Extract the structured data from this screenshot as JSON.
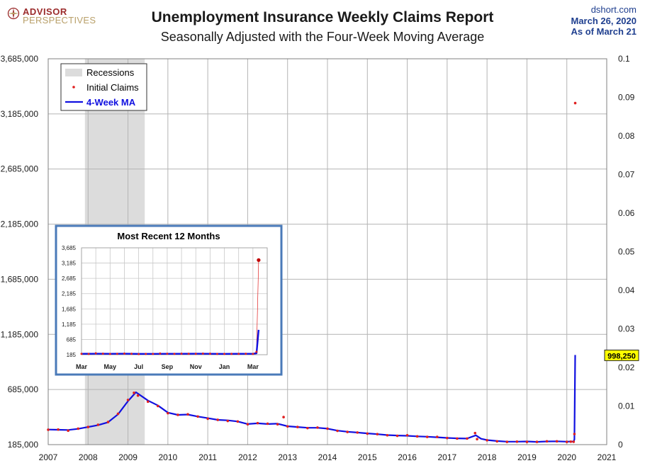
{
  "header": {
    "logo_top": "ADVISOR",
    "logo_bottom": "PERSPECTIVES",
    "title": "Unemployment Insurance Weekly Claims Report",
    "subtitle": "Seasonally Adjusted with the Four-Week Moving Average",
    "source": "dshort.com",
    "date": "March 26, 2020",
    "as_of": "As of March 21"
  },
  "chart_data": [
    {
      "type": "line",
      "title": "Unemployment Insurance Weekly Claims Report",
      "legend": {
        "placement": "top-left",
        "items": [
          "Recessions",
          "Initial Claims",
          "4-Week MA"
        ]
      },
      "y_ticks": [
        "185,000",
        "685,000",
        "1,185,000",
        "1,685,000",
        "2,185,000",
        "2,685,000",
        "3,185,000",
        "3,685,000"
      ],
      "ylim": [
        185000,
        3685000
      ],
      "y2_ticks": [
        "0",
        "0.01",
        "0.02",
        "0.03",
        "0.04",
        "0.05",
        "0.06",
        "0.07",
        "0.08",
        "0.09",
        "0.1"
      ],
      "y2lim": [
        0,
        0.1
      ],
      "x_ticks": [
        "2007",
        "2008",
        "2009",
        "2010",
        "2011",
        "2012",
        "2013",
        "2014",
        "2015",
        "2016",
        "2017",
        "2018",
        "2019",
        "2020",
        "2021"
      ],
      "xlim": [
        2007,
        2021
      ],
      "grid": true,
      "recession": [
        2007.92,
        2009.42
      ],
      "last_ma_label": "998,250",
      "series": [
        {
          "name": "Initial Claims",
          "color": "#e02020",
          "x": [
            2007.0,
            2007.25,
            2007.5,
            2007.75,
            2008.0,
            2008.25,
            2008.5,
            2008.75,
            2009.0,
            2009.15,
            2009.25,
            2009.5,
            2009.75,
            2010.0,
            2010.25,
            2010.5,
            2010.75,
            2011.0,
            2011.25,
            2011.5,
            2011.75,
            2012.0,
            2012.25,
            2012.5,
            2012.75,
            2012.9,
            2013.0,
            2013.25,
            2013.5,
            2013.75,
            2014.0,
            2014.25,
            2014.5,
            2014.75,
            2015.0,
            2015.25,
            2015.5,
            2015.75,
            2016.0,
            2016.25,
            2016.5,
            2016.75,
            2017.0,
            2017.25,
            2017.5,
            2017.7,
            2017.75,
            2018.0,
            2018.25,
            2018.5,
            2018.75,
            2019.0,
            2019.25,
            2019.5,
            2019.75,
            2020.0,
            2020.1,
            2020.17,
            2020.19,
            2020.21
          ],
          "values": [
            320000,
            322000,
            312000,
            330000,
            345000,
            365000,
            390000,
            465000,
            590000,
            655000,
            630000,
            575000,
            535000,
            470000,
            455000,
            460000,
            440000,
            420000,
            410000,
            400000,
            395000,
            370000,
            380000,
            375000,
            370000,
            435000,
            350000,
            345000,
            335000,
            340000,
            330000,
            310000,
            300000,
            295000,
            285000,
            280000,
            270000,
            265000,
            270000,
            260000,
            255000,
            255000,
            245000,
            240000,
            240000,
            290000,
            235000,
            225000,
            215000,
            210000,
            212000,
            210000,
            210000,
            215000,
            215000,
            210000,
            212000,
            211000,
            281000,
            3283000
          ]
        },
        {
          "name": "4-Week MA",
          "color": "#1010e0",
          "x": [
            2007.0,
            2007.25,
            2007.5,
            2007.75,
            2008.0,
            2008.25,
            2008.5,
            2008.75,
            2009.0,
            2009.2,
            2009.5,
            2009.75,
            2010.0,
            2010.25,
            2010.5,
            2010.75,
            2011.0,
            2011.25,
            2011.5,
            2011.75,
            2012.0,
            2012.25,
            2012.5,
            2012.75,
            2013.0,
            2013.25,
            2013.5,
            2013.75,
            2014.0,
            2014.25,
            2014.5,
            2014.75,
            2015.0,
            2015.25,
            2015.5,
            2015.75,
            2016.0,
            2016.25,
            2016.5,
            2016.75,
            2017.0,
            2017.25,
            2017.5,
            2017.72,
            2017.85,
            2018.0,
            2018.25,
            2018.5,
            2018.75,
            2019.0,
            2019.25,
            2019.5,
            2019.75,
            2020.0,
            2020.1,
            2020.17,
            2020.19,
            2020.21
          ],
          "values": [
            322000,
            320000,
            318000,
            328000,
            345000,
            362000,
            388000,
            460000,
            580000,
            660000,
            585000,
            540000,
            475000,
            455000,
            458000,
            440000,
            425000,
            410000,
            405000,
            395000,
            372000,
            378000,
            372000,
            375000,
            352000,
            345000,
            338000,
            338000,
            330000,
            312000,
            302000,
            295000,
            287000,
            280000,
            272000,
            268000,
            265000,
            260000,
            257000,
            252000,
            246000,
            242000,
            240000,
            270000,
            238000,
            227000,
            218000,
            212000,
            212000,
            214000,
            210000,
            214000,
            215000,
            212000,
            213000,
            214000,
            232000,
            998250
          ]
        }
      ]
    },
    {
      "type": "line",
      "title": "Most Recent 12 Months",
      "y_ticks": [
        "185",
        "685",
        "1,185",
        "1,685",
        "2,185",
        "2,685",
        "3,185",
        "3,685"
      ],
      "ylim": [
        185,
        3685
      ],
      "x_ticks": [
        "Mar",
        "May",
        "Jul",
        "Sep",
        "Nov",
        "Jan",
        "Mar"
      ],
      "grid": true,
      "series": [
        {
          "name": "Initial Claims",
          "color": "#e02020",
          "x": [
            0.0,
            0.5,
            1.0,
            1.5,
            2.0,
            2.5,
            3.0,
            3.5,
            4.0,
            4.5,
            5.0,
            5.5,
            6.0,
            6.5,
            7.0,
            7.5,
            8.0,
            8.5,
            9.0,
            9.5,
            10.0,
            10.5,
            11.0,
            11.5,
            12.0,
            12.25,
            12.4
          ],
          "values": [
            215,
            212,
            232,
            220,
            212,
            215,
            222,
            217,
            205,
            212,
            210,
            225,
            217,
            213,
            220,
            217,
            213,
            223,
            220,
            210,
            212,
            215,
            213,
            218,
            211,
            281,
            3283
          ]
        },
        {
          "name": "4-Week MA",
          "color": "#1010e0",
          "x": [
            0.0,
            1.0,
            2.0,
            3.0,
            4.0,
            5.0,
            6.0,
            7.0,
            8.0,
            9.0,
            10.0,
            11.0,
            12.0,
            12.25,
            12.4
          ],
          "values": [
            215,
            218,
            216,
            218,
            212,
            213,
            216,
            216,
            217,
            215,
            213,
            214,
            214,
            232,
            998
          ]
        }
      ]
    }
  ]
}
